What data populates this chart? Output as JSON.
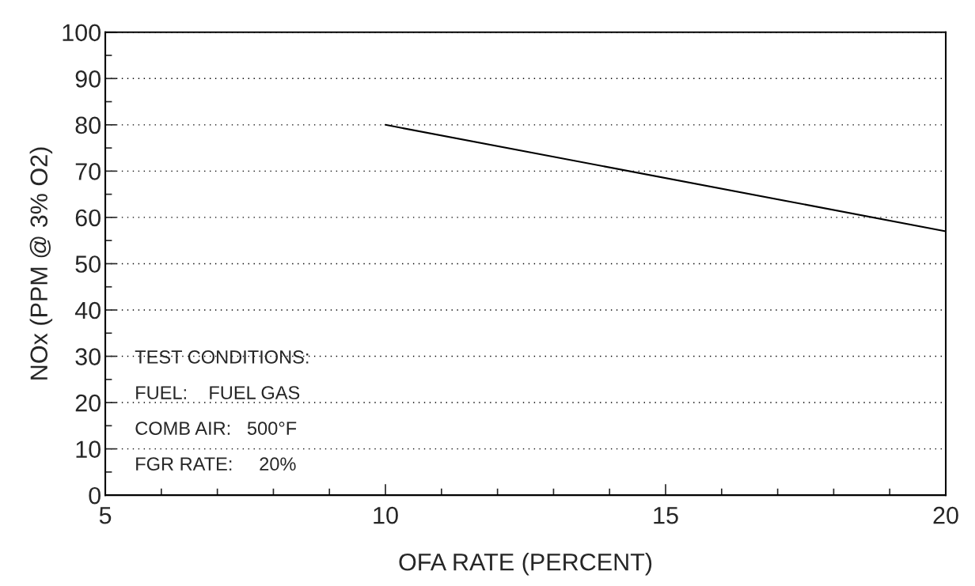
{
  "chart_data": {
    "type": "line",
    "xlabel": "OFA RATE (PERCENT)",
    "ylabel": "NOx (PPM @ 3% O2)",
    "x": [
      10,
      20
    ],
    "series": [
      {
        "color": "#000000",
        "values": [
          80,
          57
        ]
      }
    ],
    "xlim": [
      5,
      20
    ],
    "xticks": [
      5,
      10,
      15,
      20
    ],
    "ylim": [
      0,
      100
    ],
    "yticks": [
      0,
      10,
      20,
      30,
      40,
      50,
      60,
      70,
      80,
      90,
      100
    ],
    "grid": "y",
    "legend": false,
    "marker": "none",
    "line_style": "solid",
    "annotations": [
      "TEST CONDITIONS:",
      "FUEL:    FUEL GAS",
      "COMB AIR:   500°F",
      "FGR RATE:     20%"
    ]
  }
}
